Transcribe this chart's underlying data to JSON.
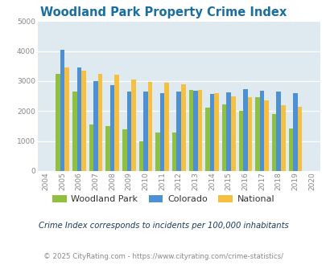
{
  "title": "Woodland Park Property Crime Index",
  "years": [
    2004,
    2005,
    2006,
    2007,
    2008,
    2009,
    2010,
    2011,
    2012,
    2013,
    2014,
    2015,
    2016,
    2017,
    2018,
    2019,
    2020
  ],
  "woodland_park": [
    null,
    3250,
    2650,
    1550,
    1500,
    1400,
    1000,
    1280,
    1280,
    2700,
    2120,
    2220,
    2020,
    2460,
    1900,
    1420,
    null
  ],
  "colorado": [
    null,
    4050,
    3450,
    3000,
    2870,
    2650,
    2650,
    2600,
    2650,
    2680,
    2560,
    2620,
    2730,
    2670,
    2640,
    2600,
    null
  ],
  "national": [
    null,
    3460,
    3340,
    3250,
    3220,
    3050,
    2960,
    2940,
    2890,
    2710,
    2600,
    2500,
    2460,
    2350,
    2190,
    2130,
    null
  ],
  "woodland_park_color": "#8fc040",
  "colorado_color": "#4d90d4",
  "national_color": "#f5c040",
  "bg_color": "#deeaf0",
  "ylim": [
    0,
    5000
  ],
  "yticks": [
    0,
    1000,
    2000,
    3000,
    4000,
    5000
  ],
  "subtitle": "Crime Index corresponds to incidents per 100,000 inhabitants",
  "footer": "© 2025 CityRating.com - https://www.cityrating.com/crime-statistics/",
  "legend_labels": [
    "Woodland Park",
    "Colorado",
    "National"
  ],
  "title_color": "#1a6ea0",
  "subtitle_color": "#1a3a5c",
  "footer_color": "#888888",
  "footer_link_color": "#4d90d4"
}
